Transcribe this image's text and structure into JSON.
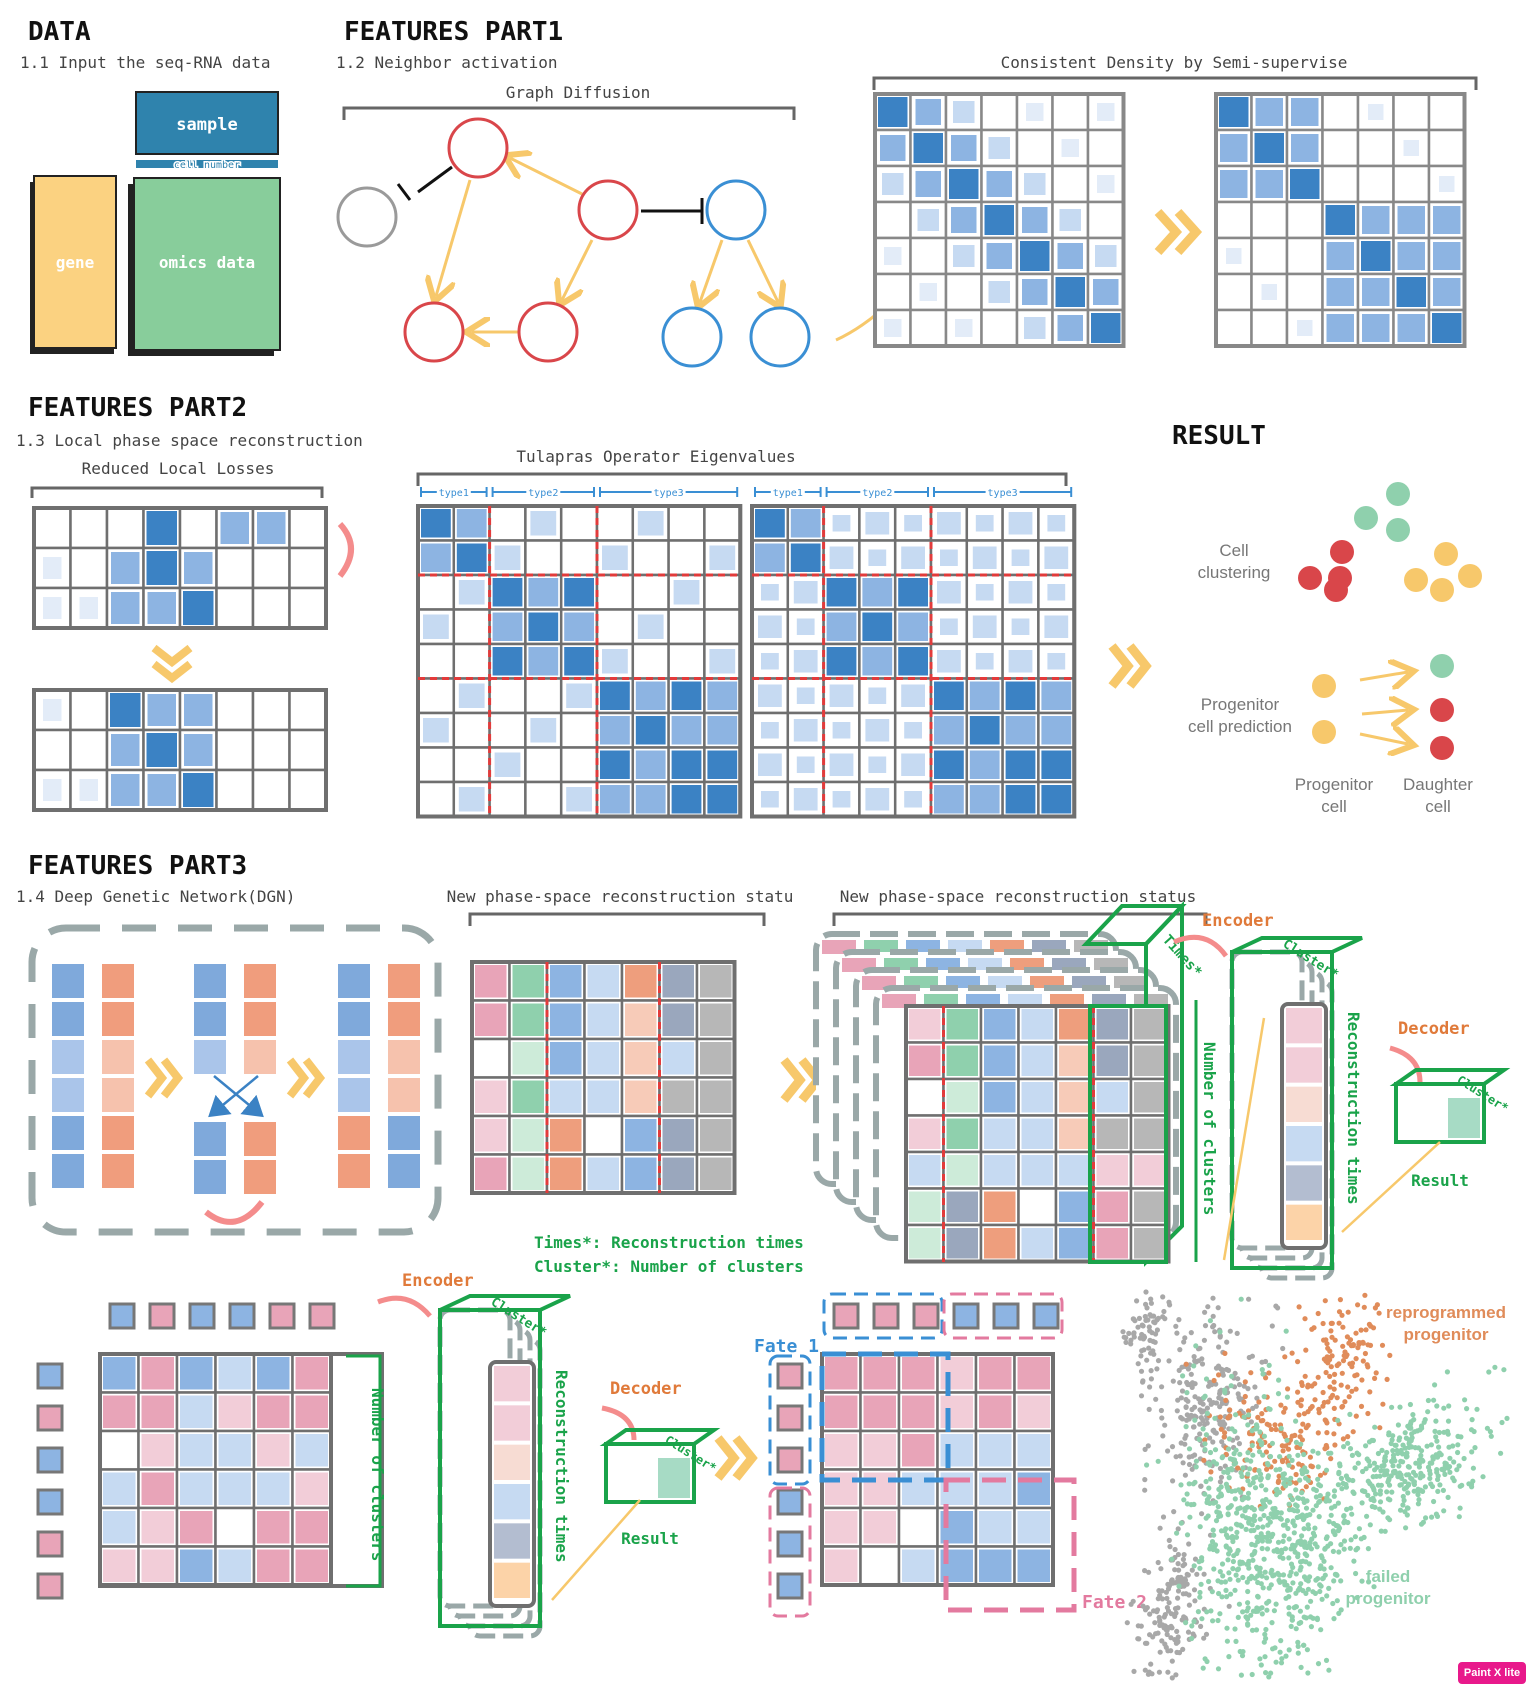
{
  "sections": {
    "data": {
      "title": "DATA",
      "subtitle": "1.1 Input the seq-RNA data",
      "labels": {
        "sample": "sample",
        "cell_number": "cell number",
        "gene": "gene",
        "omics": "omics data"
      }
    },
    "part1": {
      "title": "FEATURES  PART1",
      "subtitle": "1.2 Neighbor activation",
      "graph_caption": "Graph Diffusion",
      "density_caption": "Consistent Density by Semi-supervise"
    },
    "part2": {
      "title": "FEATURES  PART2",
      "subtitle": "1.3 Local phase space reconstruction",
      "losses_caption": "Reduced Local Losses",
      "eigen_caption": "Tulapras Operator Eigenvalues",
      "type_labels": [
        "type1",
        "type2",
        "type3"
      ]
    },
    "result": {
      "title": "RESULT",
      "cell_clustering": [
        "Cell",
        "clustering"
      ],
      "progenitor_prediction": [
        "Progenitor",
        "cell prediction"
      ],
      "progenitor_cell": [
        "Progenitor",
        "cell"
      ],
      "daughter_cell": [
        "Daughter",
        "cell"
      ]
    },
    "part3": {
      "title": "FEATURES  PART3",
      "subtitle": "1.4 Deep Genetic Network(DGN)",
      "caption_a": "New phase-space reconstruction statu",
      "caption_b": "New phase-space reconstruction status",
      "legend": [
        "Times*: Reconstruction times",
        "Cluster*: Number of clusters"
      ],
      "encoder": "Encoder",
      "decoder": "Decoder",
      "result": "Result",
      "times": "Times*",
      "cluster": "Cluster*",
      "num_clusters": "Number of clusters",
      "recon_times": "Reconstruction times",
      "fate1": "Fate 1",
      "fate2": "Fate 2",
      "reprogrammed": [
        "reprogrammed",
        "progenitor"
      ],
      "failed": [
        "failed",
        "progenitor"
      ]
    }
  },
  "colors": {
    "blue_dark": "#3b82c4",
    "blue_mid": "#8db4e2",
    "blue_light": "#c6daf2",
    "red_node": "#d9464a",
    "blue_node": "#3a8fd4",
    "yellow": "#f7c86b",
    "green": "#1aa34a",
    "pink": "#e490a8",
    "orange": "#ee9e7d",
    "teal": "#8fd0ad"
  },
  "badge": "Paint X lite"
}
